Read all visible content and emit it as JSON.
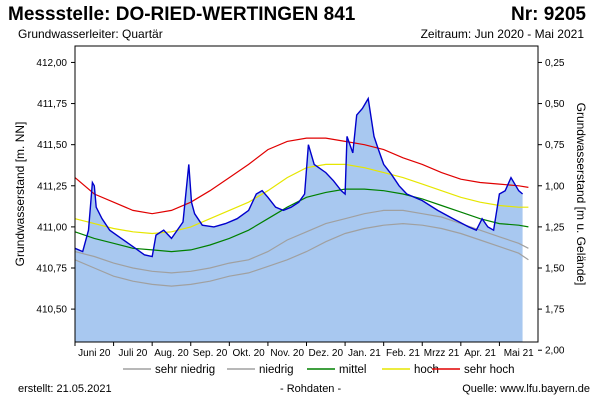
{
  "header": {
    "title": "Messstelle: DO-RIED-WERTINGEN 841",
    "number": "Nr: 9205",
    "aquifer": "Grundwasserleiter: Quartär",
    "period": "Zeitraum: Jun 2020 - Mai 2021"
  },
  "footer": {
    "created": "erstellt:  21.05.2021",
    "raw": "- Rohdaten -",
    "source": "Quelle:  www.lfu.bayern.de"
  },
  "colors": {
    "area_fill": "#a8c8f0",
    "measured_line": "#0000cc",
    "sehr_niedrig": "#a0a0a0",
    "niedrig": "#a0a0a0",
    "mittel": "#008000",
    "hoch": "#e6e600",
    "sehr_hoch": "#e00000"
  },
  "chart_data": {
    "type": "area",
    "ylabel": "Grundwasserstand [m. NN]",
    "y2label": "Grundwasserstand [m u. Geländе]",
    "ylim": [
      410.3,
      412.1
    ],
    "y2_offset": 412.25,
    "yticks": [
      "412,00",
      "411,75",
      "411,50",
      "411,25",
      "411,00",
      "410,75",
      "410,50"
    ],
    "yticks_values": [
      412.0,
      411.75,
      411.5,
      411.25,
      411.0,
      410.75,
      410.5
    ],
    "y2ticks": [
      "0,25",
      "0,50",
      "0,75",
      "1,00",
      "1,25",
      "1,50",
      "1,75",
      "2,00"
    ],
    "y2ticks_values": [
      0.25,
      0.5,
      0.75,
      1.0,
      1.25,
      1.5,
      1.75,
      2.0
    ],
    "xlim": [
      0,
      12
    ],
    "xticks": [
      "Juni 20",
      "Juli 20",
      "Aug. 20",
      "Sep. 20",
      "Okt. 20",
      "Nov. 20",
      "Dez. 20",
      "Jan. 21",
      "Feb. 21",
      "Mrzz 21",
      "Apr. 21",
      "Mai 21"
    ],
    "grid": false,
    "legend_position": "bottom",
    "series": [
      {
        "name": "sehr niedrig",
        "key": "sehr_niedrig",
        "x": [
          0,
          0.5,
          1,
          1.5,
          2,
          2.5,
          3,
          3.5,
          4,
          4.5,
          5,
          5.5,
          6,
          6.5,
          7,
          7.5,
          8,
          8.5,
          9,
          9.5,
          10,
          10.5,
          11,
          11.5,
          11.75
        ],
        "y": [
          410.8,
          410.75,
          410.7,
          410.67,
          410.65,
          410.64,
          410.65,
          410.67,
          410.7,
          410.72,
          410.76,
          410.8,
          410.85,
          410.91,
          410.96,
          410.99,
          411.01,
          411.02,
          411.01,
          410.99,
          410.96,
          410.92,
          410.88,
          410.84,
          410.8
        ]
      },
      {
        "name": "niedrig",
        "key": "niedrig",
        "x": [
          0,
          0.5,
          1,
          1.5,
          2,
          2.5,
          3,
          3.5,
          4,
          4.5,
          5,
          5.5,
          6,
          6.5,
          7,
          7.5,
          8,
          8.5,
          9,
          9.5,
          10,
          10.5,
          11,
          11.5,
          11.75
        ],
        "y": [
          410.85,
          410.82,
          410.78,
          410.75,
          410.73,
          410.72,
          410.73,
          410.75,
          410.78,
          410.8,
          410.85,
          410.92,
          410.97,
          411.02,
          411.05,
          411.08,
          411.1,
          411.1,
          411.08,
          411.06,
          411.02,
          410.98,
          410.94,
          410.9,
          410.87
        ]
      },
      {
        "name": "mittel",
        "key": "mittel",
        "x": [
          0,
          0.5,
          1,
          1.5,
          2,
          2.5,
          3,
          3.5,
          4,
          4.5,
          5,
          5.5,
          6,
          6.5,
          7,
          7.5,
          8,
          8.5,
          9,
          9.5,
          10,
          10.5,
          11,
          11.5,
          11.75
        ],
        "y": [
          410.97,
          410.93,
          410.9,
          410.87,
          410.86,
          410.85,
          410.86,
          410.89,
          410.93,
          410.98,
          411.05,
          411.12,
          411.18,
          411.21,
          411.23,
          411.23,
          411.22,
          411.2,
          411.17,
          411.13,
          411.09,
          411.05,
          411.02,
          411.01,
          411.0
        ]
      },
      {
        "name": "hoch",
        "key": "hoch",
        "x": [
          0,
          0.5,
          1,
          1.5,
          2,
          2.5,
          3,
          3.5,
          4,
          4.5,
          5,
          5.5,
          6,
          6.5,
          7,
          7.5,
          8,
          8.5,
          9,
          9.5,
          10,
          10.5,
          11,
          11.5,
          11.75
        ],
        "y": [
          411.05,
          411.02,
          410.99,
          410.97,
          410.96,
          410.97,
          411.0,
          411.05,
          411.1,
          411.15,
          411.22,
          411.3,
          411.36,
          411.38,
          411.38,
          411.36,
          411.33,
          411.3,
          411.26,
          411.22,
          411.18,
          411.15,
          411.13,
          411.12,
          411.12
        ]
      },
      {
        "name": "sehr hoch",
        "key": "sehr_hoch",
        "x": [
          0,
          0.5,
          1,
          1.5,
          2,
          2.5,
          3,
          3.5,
          4,
          4.5,
          5,
          5.5,
          6,
          6.5,
          7,
          7.5,
          8,
          8.5,
          9,
          9.5,
          10,
          10.5,
          11,
          11.5,
          11.75
        ],
        "y": [
          411.3,
          411.2,
          411.15,
          411.1,
          411.08,
          411.1,
          411.15,
          411.22,
          411.3,
          411.38,
          411.47,
          411.52,
          411.54,
          411.54,
          411.52,
          411.5,
          411.47,
          411.42,
          411.38,
          411.33,
          411.29,
          411.27,
          411.26,
          411.25,
          411.24
        ]
      }
    ],
    "measured": {
      "name": "Grundwasserstand",
      "x": [
        0,
        0.2,
        0.35,
        0.45,
        0.5,
        0.55,
        0.7,
        0.9,
        1.2,
        1.5,
        1.8,
        2.0,
        2.1,
        2.3,
        2.5,
        2.8,
        2.95,
        3.02,
        3.1,
        3.3,
        3.6,
        3.9,
        4.2,
        4.5,
        4.7,
        4.85,
        5.0,
        5.2,
        5.4,
        5.6,
        5.8,
        5.95,
        6.05,
        6.2,
        6.5,
        6.7,
        6.9,
        7.0,
        7.05,
        7.2,
        7.3,
        7.45,
        7.6,
        7.75,
        7.85,
        8.0,
        8.2,
        8.4,
        8.6,
        9.0,
        9.4,
        9.8,
        10.2,
        10.4,
        10.55,
        10.7,
        10.85,
        11.0,
        11.15,
        11.3,
        11.5,
        11.6
      ],
      "y": [
        410.87,
        410.85,
        410.98,
        411.27,
        411.25,
        411.12,
        411.05,
        410.98,
        410.93,
        410.88,
        410.83,
        410.82,
        410.95,
        410.98,
        410.93,
        411.03,
        411.38,
        411.15,
        411.08,
        411.01,
        411.0,
        411.02,
        411.05,
        411.1,
        411.2,
        411.22,
        411.18,
        411.12,
        411.1,
        411.12,
        411.15,
        411.2,
        411.5,
        411.38,
        411.33,
        411.28,
        411.22,
        411.2,
        411.55,
        411.45,
        411.68,
        411.72,
        411.78,
        411.55,
        411.48,
        411.38,
        411.32,
        411.25,
        411.2,
        411.16,
        411.1,
        411.05,
        411.0,
        410.98,
        411.05,
        411.0,
        410.98,
        411.2,
        411.22,
        411.3,
        411.22,
        411.2
      ]
    }
  }
}
